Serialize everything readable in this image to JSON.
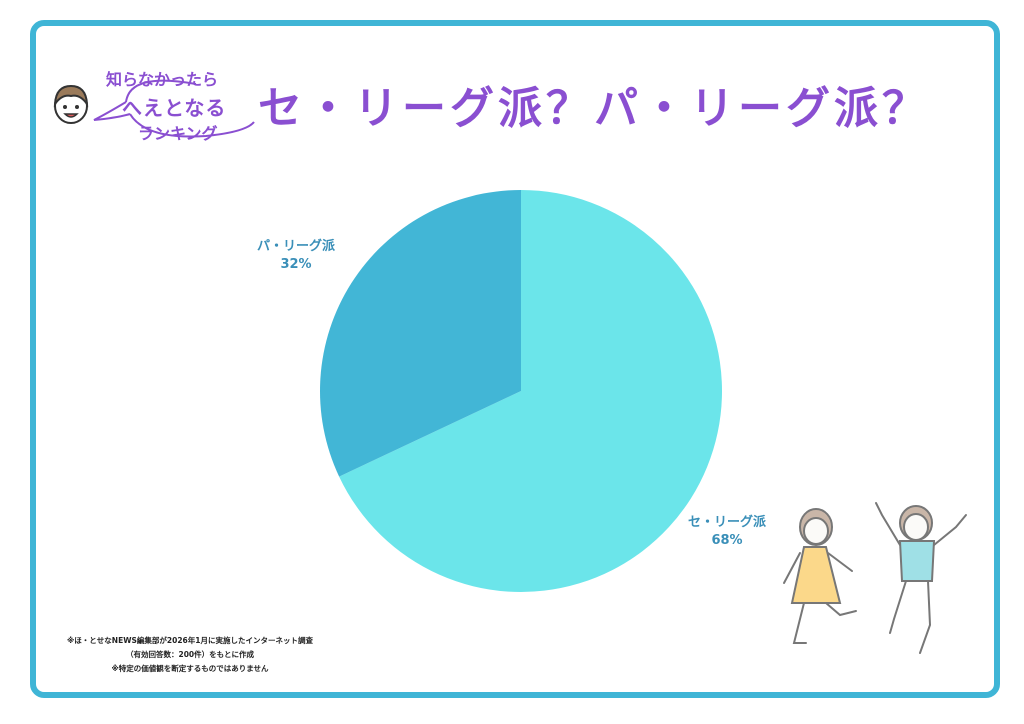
{
  "logo": {
    "line1": "知らなかったら",
    "line2": "へえとなる",
    "line3": "ランキング"
  },
  "chart_data": {
    "type": "pie",
    "title": "セ・リーグ派？パ・リーグ派？",
    "categories": [
      "セ・リーグ派",
      "パ・リーグ派"
    ],
    "values": [
      68,
      32
    ],
    "value_labels": [
      "68%",
      "32%"
    ],
    "colors": [
      "#6be5ea",
      "#42b6d6"
    ],
    "start_angle": "12 o'clock",
    "direction": "clockwise"
  },
  "notes": [
    "※ほ・とせなNEWS編集部が2026年1月に実施したインターネット調査",
    "（有効回答数：200件）をもとに作成",
    "※特定の価値観を断定するものではありません"
  ],
  "colors": {
    "frame": "#3fb5d6",
    "title": "#8a4fd1",
    "label": "#3a8fb8"
  }
}
